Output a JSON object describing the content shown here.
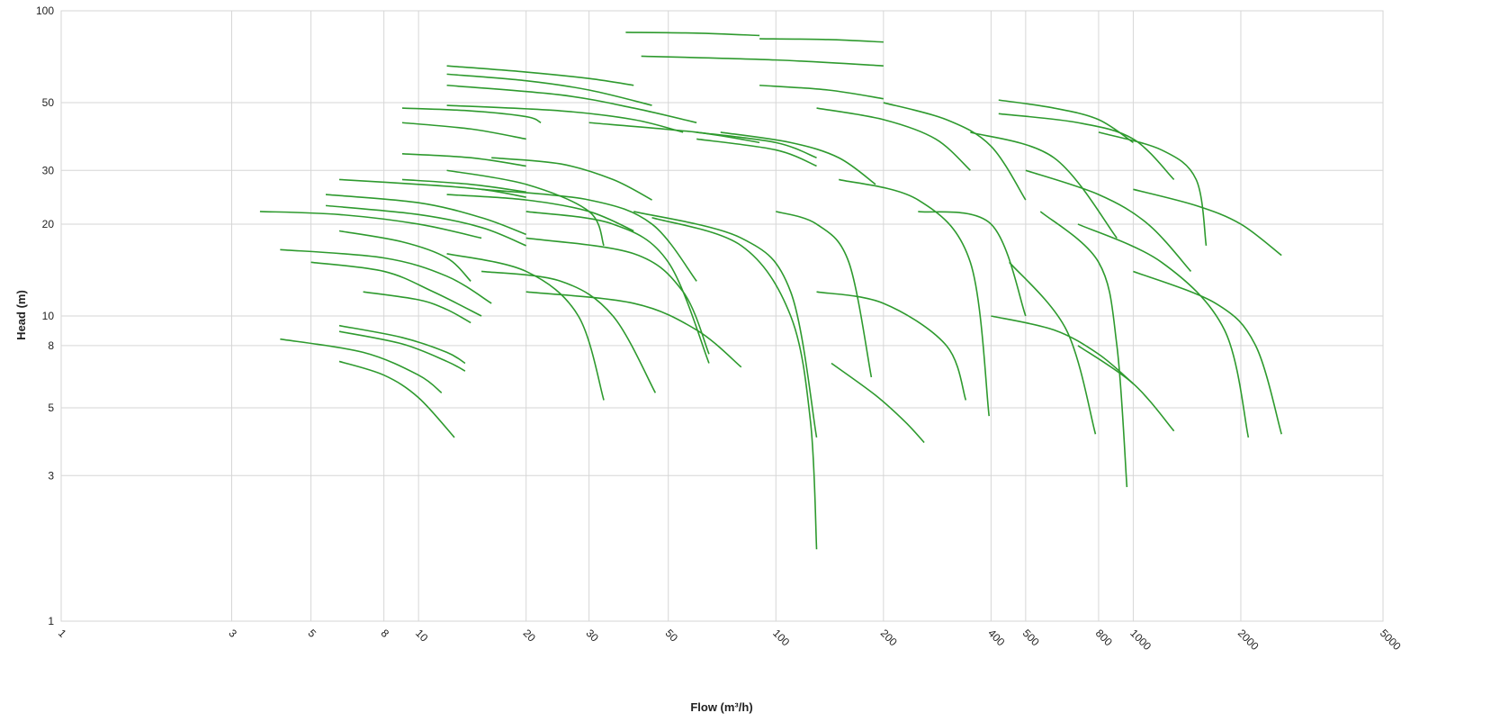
{
  "chart_data": {
    "type": "line",
    "x_label": "Flow (m³/h)",
    "y_label": "Head (m)",
    "xscale": "log",
    "yscale": "log",
    "grid": true,
    "color": "#2e9a2e",
    "xlim": [
      1,
      5000
    ],
    "ylim": [
      1,
      100
    ],
    "xticks": [
      1,
      3,
      5,
      8,
      10,
      20,
      30,
      50,
      100,
      200,
      400,
      500,
      800,
      1000,
      2000,
      5000
    ],
    "yticks": [
      1,
      3,
      5,
      8,
      10,
      20,
      30,
      50,
      100
    ],
    "series": [
      {
        "x": [
          4.1,
          7,
          10,
          11.6
        ],
        "values": [
          8.4,
          7.6,
          6.4,
          5.6
        ]
      },
      {
        "x": [
          6,
          8,
          10,
          12.6
        ],
        "values": [
          7.1,
          6.4,
          5.4,
          4
        ]
      },
      {
        "x": [
          6,
          9,
          12,
          13.5
        ],
        "values": [
          9.3,
          8.5,
          7.6,
          7.0
        ]
      },
      {
        "x": [
          6,
          9,
          12,
          13.5
        ],
        "values": [
          8.9,
          8.1,
          7.1,
          6.6
        ]
      },
      {
        "x": [
          3.6,
          6,
          10,
          15
        ],
        "values": [
          22,
          21.5,
          20,
          18
        ]
      },
      {
        "x": [
          4.1,
          8,
          12,
          16
        ],
        "values": [
          16.5,
          15.5,
          13.5,
          11
        ]
      },
      {
        "x": [
          5,
          8,
          11,
          15
        ],
        "values": [
          15,
          14,
          12,
          10
        ]
      },
      {
        "x": [
          5.5,
          10,
          15,
          20
        ],
        "values": [
          25,
          23.5,
          21,
          18.5
        ]
      },
      {
        "x": [
          5.5,
          10,
          15,
          20
        ],
        "values": [
          23,
          21.5,
          19.5,
          17
        ]
      },
      {
        "x": [
          6,
          10,
          15,
          20
        ],
        "values": [
          28,
          27,
          26,
          24.5
        ]
      },
      {
        "x": [
          6,
          9,
          12,
          14
        ],
        "values": [
          19,
          17.5,
          15.5,
          13
        ]
      },
      {
        "x": [
          7,
          10,
          12,
          14
        ],
        "values": [
          12,
          11.3,
          10.5,
          9.5
        ]
      },
      {
        "x": [
          9,
          14,
          20,
          22
        ],
        "values": [
          48,
          47,
          45,
          43
        ]
      },
      {
        "x": [
          9,
          14,
          20
        ],
        "values": [
          43,
          41,
          38
        ]
      },
      {
        "x": [
          9,
          14,
          20
        ],
        "values": [
          34,
          33,
          31
        ]
      },
      {
        "x": [
          9,
          14,
          20
        ],
        "values": [
          28,
          27,
          25.5
        ]
      },
      {
        "x": [
          12,
          20,
          30,
          40
        ],
        "values": [
          66,
          63,
          60,
          57
        ]
      },
      {
        "x": [
          12,
          20,
          30,
          45
        ],
        "values": [
          62,
          59,
          55,
          49
        ]
      },
      {
        "x": [
          12,
          25,
          40,
          60
        ],
        "values": [
          57,
          53,
          48,
          43
        ]
      },
      {
        "x": [
          12,
          25,
          40,
          55
        ],
        "values": [
          49,
          47,
          44,
          40
        ]
      },
      {
        "x": [
          16,
          25,
          35,
          45
        ],
        "values": [
          33,
          31.5,
          28,
          24
        ]
      },
      {
        "x": [
          12,
          20,
          30,
          33
        ],
        "values": [
          30,
          27,
          22,
          17
        ]
      },
      {
        "x": [
          12,
          20,
          28,
          33
        ],
        "values": [
          16,
          14,
          10,
          5.3
        ]
      },
      {
        "x": [
          15,
          25,
          35,
          46
        ],
        "values": [
          14,
          13,
          10,
          5.6
        ]
      },
      {
        "x": [
          20,
          35,
          50,
          65
        ],
        "values": [
          22,
          20,
          15,
          7
        ]
      },
      {
        "x": [
          20,
          40,
          55,
          65
        ],
        "values": [
          18,
          16,
          12,
          7.5
        ]
      },
      {
        "x": [
          45,
          80,
          110,
          125,
          130
        ],
        "values": [
          21,
          17,
          10,
          4.5,
          1.72
        ]
      },
      {
        "x": [
          40,
          80,
          110,
          130
        ],
        "values": [
          22,
          18,
          12,
          4
        ]
      },
      {
        "x": [
          38,
          60,
          90
        ],
        "values": [
          85,
          84.5,
          83
        ]
      },
      {
        "x": [
          90,
          140,
          200
        ],
        "values": [
          81,
          80.5,
          79
        ]
      },
      {
        "x": [
          42,
          100,
          200
        ],
        "values": [
          71,
          69,
          66
        ]
      },
      {
        "x": [
          90,
          140,
          200
        ],
        "values": [
          57,
          55,
          51.5
        ]
      },
      {
        "x": [
          60,
          100,
          130
        ],
        "values": [
          40,
          37,
          33
        ]
      },
      {
        "x": [
          60,
          100,
          130
        ],
        "values": [
          38,
          35,
          31
        ]
      },
      {
        "x": [
          30,
          60,
          90
        ],
        "values": [
          43,
          40,
          37
        ]
      },
      {
        "x": [
          130,
          200,
          280,
          350
        ],
        "values": [
          48,
          44,
          38,
          30
        ]
      },
      {
        "x": [
          200,
          300,
          400,
          500
        ],
        "values": [
          50,
          44,
          36,
          24
        ]
      },
      {
        "x": [
          150,
          250,
          350,
          395
        ],
        "values": [
          28,
          24,
          15,
          4.7
        ]
      },
      {
        "x": [
          143,
          190,
          230,
          260
        ],
        "values": [
          7,
          5.5,
          4.5,
          3.85
        ]
      },
      {
        "x": [
          100,
          130,
          160,
          185
        ],
        "values": [
          22,
          20,
          15,
          6.3
        ]
      },
      {
        "x": [
          130,
          200,
          300,
          340
        ],
        "values": [
          12,
          11,
          8,
          5.3
        ]
      },
      {
        "x": [
          420,
          600,
          800,
          1000
        ],
        "values": [
          51,
          48,
          44,
          37
        ]
      },
      {
        "x": [
          420,
          700,
          1000,
          1300
        ],
        "values": [
          46,
          43,
          38,
          28
        ]
      },
      {
        "x": [
          350,
          600,
          900
        ],
        "values": [
          40,
          33,
          18
        ]
      },
      {
        "x": [
          1000,
          1500,
          2000,
          2600
        ],
        "values": [
          26,
          23,
          20,
          15.8
        ]
      },
      {
        "x": [
          1000,
          1700,
          2200,
          2600
        ],
        "values": [
          14,
          11,
          8,
          4.1
        ]
      },
      {
        "x": [
          700,
          1200,
          1800,
          2100
        ],
        "values": [
          20,
          15,
          9,
          4
        ]
      },
      {
        "x": [
          550,
          800,
          900,
          960
        ],
        "values": [
          22,
          15,
          8,
          2.75
        ]
      },
      {
        "x": [
          450,
          650,
          784
        ],
        "values": [
          15,
          9,
          4.1
        ]
      },
      {
        "x": [
          700,
          1000,
          1300
        ],
        "values": [
          8,
          6,
          4.2
        ]
      },
      {
        "x": [
          800,
          1200,
          1500,
          1600
        ],
        "values": [
          40,
          35,
          28,
          17
        ]
      },
      {
        "x": [
          500,
          800,
          1100,
          1450
        ],
        "values": [
          30,
          25,
          20,
          14
        ]
      },
      {
        "x": [
          400,
          600,
          800,
          1000
        ],
        "values": [
          10,
          9,
          7.5,
          6
        ]
      },
      {
        "x": [
          250,
          400,
          500
        ],
        "values": [
          22,
          20,
          10
        ]
      },
      {
        "x": [
          70,
          110,
          150,
          190
        ],
        "values": [
          40,
          37,
          33,
          27
        ]
      },
      {
        "x": [
          20,
          40,
          60,
          80
        ],
        "values": [
          12,
          11,
          9,
          6.8
        ]
      },
      {
        "x": [
          15,
          30,
          45,
          60
        ],
        "values": [
          26,
          24,
          20,
          13
        ]
      },
      {
        "x": [
          12,
          20,
          30,
          40
        ],
        "values": [
          25,
          24,
          22,
          19
        ]
      }
    ]
  }
}
